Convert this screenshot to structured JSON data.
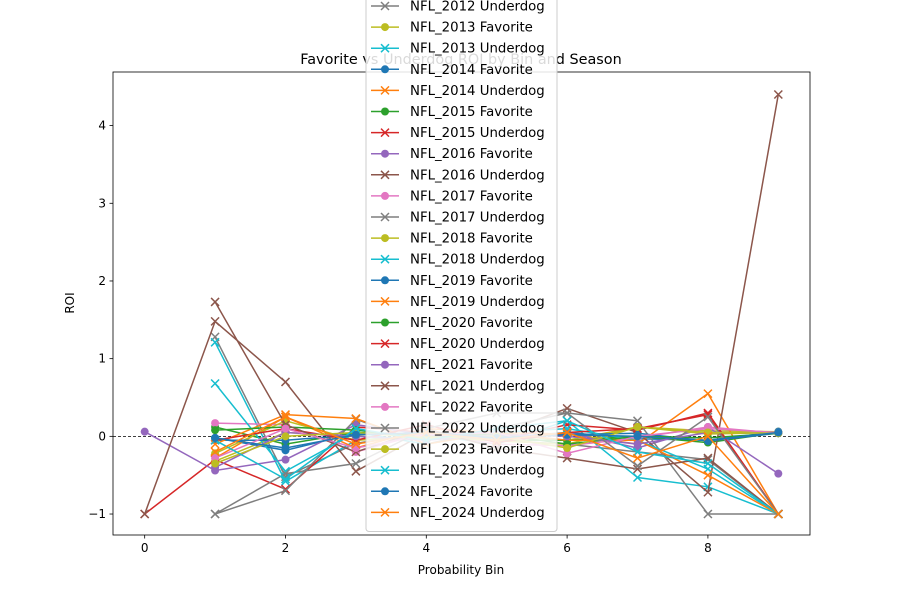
{
  "chart_data": {
    "type": "line",
    "title": "Favorite vs Underdog ROI by Bin and Season",
    "xlabel": "Probability Bin",
    "ylabel": "ROI",
    "xlim": [
      -0.45,
      9.45
    ],
    "ylim": [
      -1.27,
      4.69
    ],
    "xticks": [
      0,
      2,
      4,
      6,
      8
    ],
    "yticks": [
      -1,
      0,
      1,
      2,
      3,
      4
    ],
    "reference_line": 0,
    "grid": false,
    "legend_position": "top-center",
    "series": [
      {
        "name": "NFL_2012 Underdog",
        "color": "#7f7f7f",
        "marker": "x",
        "points": [
          [
            1,
            1.28
          ],
          [
            2,
            -0.52
          ],
          [
            3,
            -0.09
          ],
          [
            4,
            0.05
          ],
          [
            5,
            -0.05
          ],
          [
            6,
            -0.1
          ],
          [
            7,
            -0.2
          ],
          [
            8,
            -0.3
          ],
          [
            9,
            -1.0
          ]
        ]
      },
      {
        "name": "NFL_2013 Favorite",
        "color": "#bcbd22",
        "marker": "o",
        "points": [
          [
            1,
            -0.32
          ],
          [
            2,
            0.05
          ],
          [
            3,
            0.0
          ],
          [
            4,
            -0.03
          ],
          [
            5,
            0.02
          ],
          [
            6,
            -0.05
          ],
          [
            7,
            0.12
          ],
          [
            8,
            0.07
          ],
          [
            9,
            0.06
          ]
        ]
      },
      {
        "name": "NFL_2013 Underdog",
        "color": "#17becf",
        "marker": "x",
        "points": [
          [
            1,
            1.21
          ],
          [
            2,
            -0.58
          ],
          [
            3,
            -0.05
          ],
          [
            4,
            0.02
          ],
          [
            5,
            -0.1
          ],
          [
            6,
            0.2
          ],
          [
            7,
            -0.53
          ],
          [
            8,
            -0.65
          ],
          [
            9,
            -1.0
          ]
        ]
      },
      {
        "name": "NFL_2014 Favorite",
        "color": "#1f77b4",
        "marker": "o",
        "points": [
          [
            1,
            -0.02
          ],
          [
            2,
            -0.18
          ],
          [
            3,
            0.04
          ],
          [
            4,
            0.0
          ],
          [
            5,
            -0.02
          ],
          [
            6,
            0.05
          ],
          [
            7,
            -0.03
          ],
          [
            8,
            -0.05
          ],
          [
            9,
            0.06
          ]
        ]
      },
      {
        "name": "NFL_2014 Underdog",
        "color": "#ff7f0e",
        "marker": "x",
        "points": [
          [
            1,
            -0.28
          ],
          [
            2,
            0.25
          ],
          [
            3,
            -0.15
          ],
          [
            4,
            0.1
          ],
          [
            5,
            0.05
          ],
          [
            6,
            0.03
          ],
          [
            7,
            -0.1
          ],
          [
            8,
            0.55
          ],
          [
            9,
            -1.0
          ]
        ]
      },
      {
        "name": "NFL_2015 Favorite",
        "color": "#2ca02c",
        "marker": "o",
        "points": [
          [
            1,
            0.12
          ],
          [
            2,
            -0.1
          ],
          [
            3,
            0.05
          ],
          [
            4,
            0.02
          ],
          [
            5,
            -0.05
          ],
          [
            6,
            -0.05
          ],
          [
            7,
            0.0
          ],
          [
            8,
            -0.08
          ],
          [
            9,
            0.05
          ]
        ]
      },
      {
        "name": "NFL_2015 Underdog",
        "color": "#d62728",
        "marker": "x",
        "points": [
          [
            0,
            -1.0
          ],
          [
            1,
            -0.3
          ],
          [
            2,
            -0.68
          ],
          [
            3,
            0.12
          ],
          [
            4,
            0.05
          ],
          [
            5,
            -0.05
          ],
          [
            6,
            0.15
          ],
          [
            7,
            0.08
          ],
          [
            8,
            0.3
          ],
          [
            9,
            -1.0
          ]
        ]
      },
      {
        "name": "NFL_2016 Favorite",
        "color": "#9467bd",
        "marker": "o",
        "points": [
          [
            0,
            0.06
          ],
          [
            1,
            -0.44
          ],
          [
            2,
            -0.3
          ],
          [
            3,
            0.15
          ],
          [
            4,
            0.02
          ],
          [
            5,
            -0.05
          ],
          [
            6,
            0.05
          ],
          [
            7,
            -0.15
          ],
          [
            8,
            0.12
          ],
          [
            9,
            -0.48
          ]
        ]
      },
      {
        "name": "NFL_2016 Underdog",
        "color": "#8c564b",
        "marker": "x",
        "points": [
          [
            0,
            -1.0
          ],
          [
            1,
            1.48
          ],
          [
            2,
            0.7
          ],
          [
            3,
            -0.45
          ],
          [
            4,
            0.05
          ],
          [
            5,
            0.02
          ],
          [
            6,
            0.36
          ],
          [
            7,
            0.05
          ],
          [
            8,
            -0.72
          ],
          [
            9,
            4.4
          ]
        ]
      },
      {
        "name": "NFL_2017 Favorite",
        "color": "#e377c2",
        "marker": "o",
        "points": [
          [
            1,
            0.17
          ],
          [
            2,
            0.15
          ],
          [
            3,
            -0.2
          ],
          [
            4,
            0.05
          ],
          [
            5,
            -0.1
          ],
          [
            6,
            -0.12
          ],
          [
            7,
            -0.02
          ],
          [
            8,
            0.12
          ],
          [
            9,
            0.04
          ]
        ]
      },
      {
        "name": "NFL_2017 Underdog",
        "color": "#7f7f7f",
        "marker": "x",
        "points": [
          [
            1,
            -1.0
          ],
          [
            2,
            -0.7
          ],
          [
            3,
            0.22
          ],
          [
            4,
            -0.1
          ],
          [
            5,
            0.1
          ],
          [
            6,
            0.3
          ],
          [
            7,
            0.2
          ],
          [
            8,
            -1.0
          ],
          [
            9,
            -1.0
          ]
        ]
      },
      {
        "name": "NFL_2018 Favorite",
        "color": "#bcbd22",
        "marker": "o",
        "points": [
          [
            1,
            -0.22
          ],
          [
            2,
            0.2
          ],
          [
            3,
            -0.05
          ],
          [
            4,
            0.0
          ],
          [
            5,
            -0.06
          ],
          [
            6,
            -0.1
          ],
          [
            7,
            0.12
          ],
          [
            8,
            0.03
          ],
          [
            9,
            0.05
          ]
        ]
      },
      {
        "name": "NFL_2018 Underdog",
        "color": "#17becf",
        "marker": "x",
        "points": [
          [
            1,
            0.68
          ],
          [
            2,
            -0.45
          ],
          [
            3,
            0.05
          ],
          [
            4,
            -0.1
          ],
          [
            5,
            0.05
          ],
          [
            6,
            0.1
          ],
          [
            7,
            -0.05
          ],
          [
            8,
            -0.42
          ],
          [
            9,
            -1.0
          ]
        ]
      },
      {
        "name": "NFL_2019 Favorite",
        "color": "#1f77b4",
        "marker": "o",
        "points": [
          [
            1,
            -0.05
          ],
          [
            2,
            -0.05
          ],
          [
            3,
            0.02
          ],
          [
            4,
            0.05
          ],
          [
            5,
            0.0
          ],
          [
            6,
            0.02
          ],
          [
            7,
            0.04
          ],
          [
            8,
            -0.06
          ],
          [
            9,
            0.04
          ]
        ]
      },
      {
        "name": "NFL_2019 Underdog",
        "color": "#ff7f0e",
        "marker": "x",
        "points": [
          [
            1,
            -0.1
          ],
          [
            2,
            0.28
          ],
          [
            3,
            0.23
          ],
          [
            4,
            -0.1
          ],
          [
            5,
            0.05
          ],
          [
            6,
            -0.05
          ],
          [
            7,
            -0.05
          ],
          [
            8,
            -0.5
          ],
          [
            9,
            -1.0
          ]
        ]
      },
      {
        "name": "NFL_2020 Favorite",
        "color": "#2ca02c",
        "marker": "o",
        "points": [
          [
            1,
            0.08
          ],
          [
            2,
            0.12
          ],
          [
            3,
            0.08
          ],
          [
            4,
            -0.02
          ],
          [
            5,
            0.03
          ],
          [
            6,
            -0.1
          ],
          [
            7,
            0.0
          ],
          [
            8,
            -0.02
          ],
          [
            9,
            0.04
          ]
        ]
      },
      {
        "name": "NFL_2020 Underdog",
        "color": "#d62728",
        "marker": "x",
        "points": [
          [
            1,
            -0.05
          ],
          [
            2,
            0.1
          ],
          [
            3,
            -0.05
          ],
          [
            4,
            0.15
          ],
          [
            5,
            -0.08
          ],
          [
            6,
            0.05
          ],
          [
            7,
            0.1
          ],
          [
            8,
            0.28
          ],
          [
            9,
            -1.0
          ]
        ]
      },
      {
        "name": "NFL_2021 Favorite",
        "color": "#9467bd",
        "marker": "o",
        "points": [
          [
            1,
            -0.4
          ],
          [
            2,
            0.05
          ],
          [
            3,
            0.0
          ],
          [
            4,
            -0.05
          ],
          [
            5,
            0.02
          ],
          [
            6,
            0.0
          ],
          [
            7,
            -0.1
          ],
          [
            8,
            0.05
          ],
          [
            9,
            0.04
          ]
        ]
      },
      {
        "name": "NFL_2021 Underdog",
        "color": "#8c564b",
        "marker": "x",
        "points": [
          [
            1,
            1.73
          ],
          [
            2,
            0.15
          ],
          [
            3,
            -0.2
          ],
          [
            4,
            0.1
          ],
          [
            5,
            -0.15
          ],
          [
            6,
            -0.28
          ],
          [
            7,
            -0.42
          ],
          [
            8,
            -0.28
          ],
          [
            9,
            -1.0
          ]
        ]
      },
      {
        "name": "NFL_2022 Favorite",
        "color": "#e377c2",
        "marker": "o",
        "points": [
          [
            1,
            -0.28
          ],
          [
            2,
            0.1
          ],
          [
            3,
            -0.15
          ],
          [
            4,
            0.02
          ],
          [
            5,
            0.05
          ],
          [
            6,
            -0.22
          ],
          [
            7,
            0.0
          ],
          [
            8,
            0.1
          ],
          [
            9,
            0.05
          ]
        ]
      },
      {
        "name": "NFL_2022 Underdog",
        "color": "#7f7f7f",
        "marker": "x",
        "points": [
          [
            1,
            -1.0
          ],
          [
            2,
            -0.48
          ],
          [
            3,
            -0.35
          ],
          [
            4,
            0.1
          ],
          [
            5,
            0.3
          ],
          [
            6,
            0.3
          ],
          [
            7,
            -0.38
          ],
          [
            8,
            0.25
          ],
          [
            9,
            -1.0
          ]
        ]
      },
      {
        "name": "NFL_2023 Favorite",
        "color": "#bcbd22",
        "marker": "o",
        "points": [
          [
            1,
            -0.35
          ],
          [
            2,
            0.0
          ],
          [
            3,
            0.05
          ],
          [
            4,
            -0.02
          ],
          [
            5,
            0.0
          ],
          [
            6,
            -0.15
          ],
          [
            7,
            0.12
          ],
          [
            8,
            0.05
          ],
          [
            9,
            0.04
          ]
        ]
      },
      {
        "name": "NFL_2023 Underdog",
        "color": "#17becf",
        "marker": "x",
        "points": [
          [
            1,
            -0.05
          ],
          [
            2,
            -0.55
          ],
          [
            3,
            0.1
          ],
          [
            4,
            -0.05
          ],
          [
            5,
            0.1
          ],
          [
            6,
            0.2
          ],
          [
            7,
            -0.2
          ],
          [
            8,
            -0.35
          ],
          [
            9,
            -1.0
          ]
        ]
      },
      {
        "name": "NFL_2024 Favorite",
        "color": "#1f77b4",
        "marker": "o",
        "points": [
          [
            1,
            -0.02
          ],
          [
            2,
            -0.15
          ],
          [
            3,
            0.02
          ],
          [
            4,
            0.05
          ],
          [
            5,
            -0.02
          ],
          [
            6,
            0.02
          ],
          [
            7,
            0.0
          ],
          [
            8,
            -0.05
          ],
          [
            9,
            0.05
          ]
        ]
      },
      {
        "name": "NFL_2024 Underdog",
        "color": "#ff7f0e",
        "marker": "x",
        "points": [
          [
            1,
            -0.2
          ],
          [
            2,
            0.25
          ],
          [
            3,
            -0.1
          ],
          [
            4,
            0.05
          ],
          [
            5,
            -0.05
          ],
          [
            6,
            0.05
          ],
          [
            7,
            -0.28
          ],
          [
            8,
            0.0
          ],
          [
            9,
            -1.0
          ]
        ]
      }
    ]
  }
}
